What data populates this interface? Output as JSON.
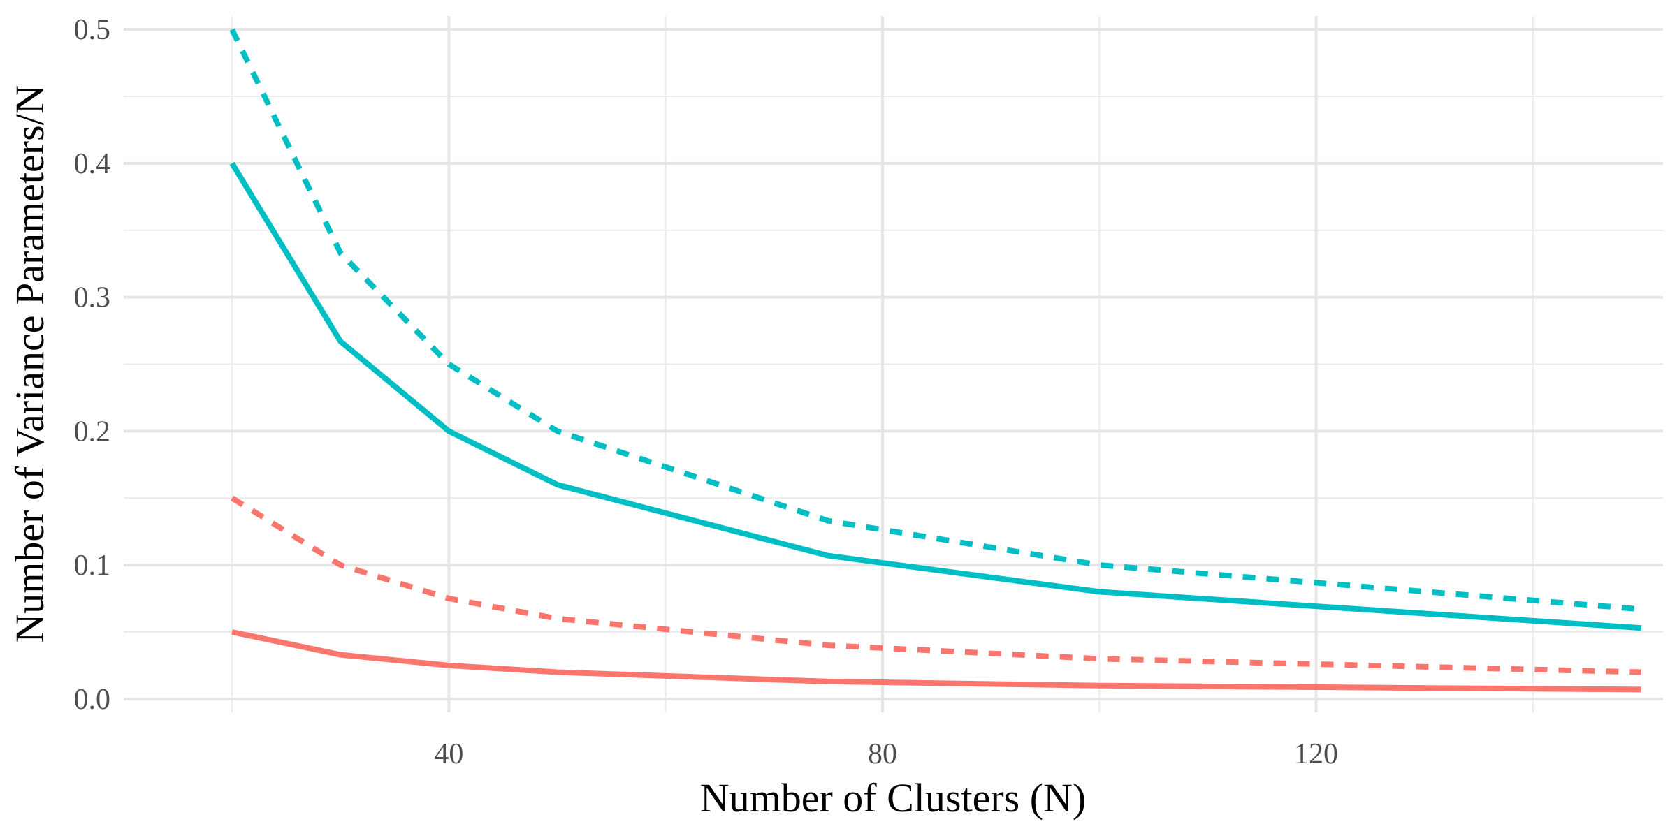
{
  "chart_data": {
    "type": "line",
    "title": "",
    "xlabel": "Number of Clusters (N)",
    "ylabel": "Number of Variance Parameters/N",
    "xlim": [
      10,
      152
    ],
    "ylim": [
      -0.01,
      0.51
    ],
    "x_ticks": [
      40,
      80,
      120
    ],
    "x_minor_ticks": [
      20,
      60,
      100,
      140
    ],
    "y_ticks": [
      0.0,
      0.1,
      0.2,
      0.3,
      0.4,
      0.5
    ],
    "y_tick_labels": [
      "0.0",
      "0.1",
      "0.2",
      "0.3",
      "0.4",
      "0.5"
    ],
    "y_minor_ticks": [
      0.05,
      0.15,
      0.25,
      0.35,
      0.45
    ],
    "grid": true,
    "legend": "none",
    "series": [
      {
        "color": "#00BFC4",
        "linestyle": "dashed",
        "x": [
          20,
          30,
          40,
          50,
          75,
          100,
          150
        ],
        "y": [
          0.5,
          0.333,
          0.25,
          0.2,
          0.133,
          0.1,
          0.067
        ]
      },
      {
        "color": "#00BFC4",
        "linestyle": "solid",
        "x": [
          20,
          30,
          40,
          50,
          75,
          100,
          150
        ],
        "y": [
          0.4,
          0.267,
          0.2,
          0.16,
          0.107,
          0.08,
          0.053
        ]
      },
      {
        "color": "#F8766D",
        "linestyle": "dashed",
        "x": [
          20,
          30,
          40,
          50,
          75,
          100,
          150
        ],
        "y": [
          0.15,
          0.1,
          0.075,
          0.06,
          0.04,
          0.03,
          0.02
        ]
      },
      {
        "color": "#F8766D",
        "linestyle": "solid",
        "x": [
          20,
          30,
          40,
          50,
          75,
          100,
          150
        ],
        "y": [
          0.05,
          0.033,
          0.025,
          0.02,
          0.013,
          0.01,
          0.007
        ]
      }
    ]
  }
}
